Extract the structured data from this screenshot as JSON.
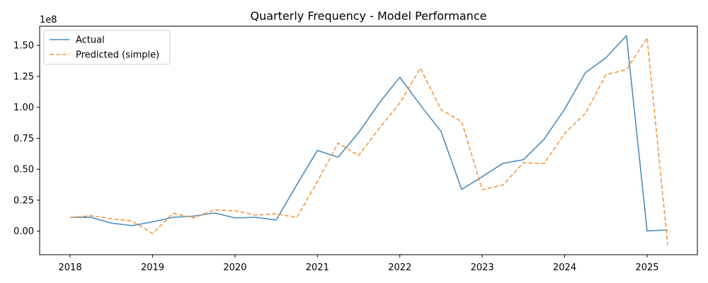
{
  "chart_data": {
    "type": "line",
    "title": "Quarterly Frequency - Model Performance",
    "xlabel": "",
    "ylabel": "",
    "y_offset_label": "1e8",
    "xlim": [
      2017.63,
      2025.61
    ],
    "ylim": [
      -0.19,
      1.655
    ],
    "x_ticks": [
      {
        "value": 2018,
        "label": "2018"
      },
      {
        "value": 2019,
        "label": "2019"
      },
      {
        "value": 2020,
        "label": "2020"
      },
      {
        "value": 2021,
        "label": "2021"
      },
      {
        "value": 2022,
        "label": "2022"
      },
      {
        "value": 2023,
        "label": "2023"
      },
      {
        "value": 2024,
        "label": "2024"
      },
      {
        "value": 2025,
        "label": "2025"
      }
    ],
    "y_ticks": [
      {
        "value": 0.0,
        "label": "0.00"
      },
      {
        "value": 0.25,
        "label": "0.25"
      },
      {
        "value": 0.5,
        "label": "0.50"
      },
      {
        "value": 0.75,
        "label": "0.75"
      },
      {
        "value": 1.0,
        "label": "1.00"
      },
      {
        "value": 1.25,
        "label": "1.25"
      },
      {
        "value": 1.5,
        "label": "1.50"
      }
    ],
    "grid": false,
    "legend_position": "upper-left",
    "series": [
      {
        "name": "Actual",
        "color": "#4a8cbf",
        "dash": "solid",
        "x": [
          2018.0,
          2018.25,
          2018.5,
          2018.75,
          2019.0,
          2019.25,
          2019.5,
          2019.75,
          2020.0,
          2020.25,
          2020.5,
          2020.75,
          2021.0,
          2021.25,
          2021.5,
          2021.75,
          2022.0,
          2022.25,
          2022.5,
          2022.75,
          2023.0,
          2023.25,
          2023.5,
          2023.75,
          2024.0,
          2024.25,
          2024.5,
          2024.75,
          2025.0,
          2025.25
        ],
        "y": [
          0.112,
          0.112,
          0.065,
          0.045,
          0.075,
          0.112,
          0.122,
          0.147,
          0.107,
          0.112,
          0.09,
          0.375,
          0.652,
          0.597,
          0.795,
          1.035,
          1.243,
          1.017,
          0.805,
          0.337,
          0.44,
          0.547,
          0.577,
          0.742,
          0.985,
          1.278,
          1.4,
          1.578,
          0.002,
          0.01
        ]
      },
      {
        "name": "Predicted (simple)",
        "color": "#f5973f",
        "dash": "dashed",
        "x": [
          2018.0,
          2018.25,
          2018.5,
          2018.75,
          2019.0,
          2019.25,
          2019.5,
          2019.75,
          2020.0,
          2020.25,
          2020.5,
          2020.75,
          2021.0,
          2021.25,
          2021.5,
          2021.75,
          2022.0,
          2022.25,
          2022.5,
          2022.75,
          2023.0,
          2023.25,
          2023.5,
          2023.75,
          2024.0,
          2024.25,
          2024.5,
          2024.75,
          2025.0,
          2025.25
        ],
        "y": [
          0.11,
          0.125,
          0.1,
          0.082,
          -0.018,
          0.145,
          0.107,
          0.172,
          0.165,
          0.13,
          0.14,
          0.11,
          0.4,
          0.712,
          0.61,
          0.83,
          1.035,
          1.315,
          0.98,
          0.885,
          0.335,
          0.372,
          0.553,
          0.545,
          0.79,
          0.95,
          1.262,
          1.305,
          1.56,
          -0.11
        ]
      }
    ]
  }
}
